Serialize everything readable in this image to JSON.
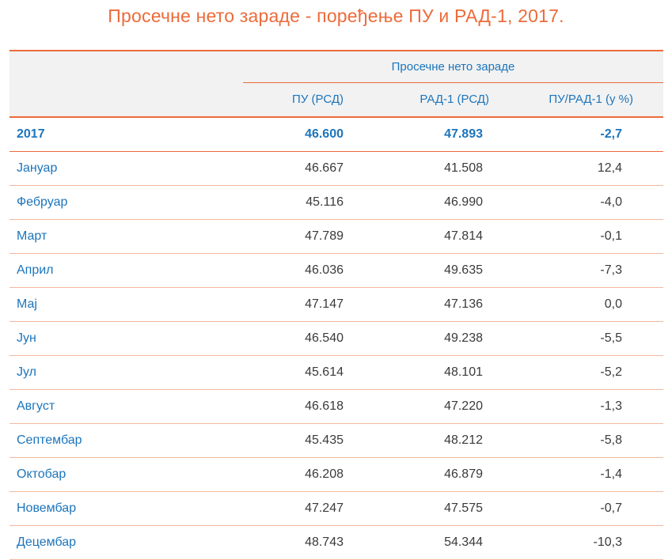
{
  "title": "Просечне нето зараде - поређење ПУ и РАД-1, 2017.",
  "table": {
    "group_header": "Просечне нето зараде",
    "columns": [
      "ПУ (РСД)",
      "РАД-1 (РСД)",
      "ПУ/РАД-1 (у %)"
    ],
    "total": {
      "label": "2017",
      "pu": "46.600",
      "rad1": "47.893",
      "diff": "-2,7"
    },
    "rows": [
      {
        "label": "Јануар",
        "pu": "46.667",
        "rad1": "41.508",
        "diff": "12,4"
      },
      {
        "label": "Фебруар",
        "pu": "45.116",
        "rad1": "46.990",
        "diff": "-4,0"
      },
      {
        "label": "Март",
        "pu": "47.789",
        "rad1": "47.814",
        "diff": "-0,1"
      },
      {
        "label": "Април",
        "pu": "46.036",
        "rad1": "49.635",
        "diff": "-7,3"
      },
      {
        "label": "Мај",
        "pu": "47.147",
        "rad1": "47.136",
        "diff": "0,0"
      },
      {
        "label": "Јун",
        "pu": "46.540",
        "rad1": "49.238",
        "diff": "-5,5"
      },
      {
        "label": "Јул",
        "pu": "45.614",
        "rad1": "48.101",
        "diff": "-5,2"
      },
      {
        "label": "Август",
        "pu": "46.618",
        "rad1": "47.220",
        "diff": "-1,3"
      },
      {
        "label": "Септембар",
        "pu": "45.435",
        "rad1": "48.212",
        "diff": "-5,8"
      },
      {
        "label": "Октобар",
        "pu": "46.208",
        "rad1": "46.879",
        "diff": "-1,4"
      },
      {
        "label": "Новембар",
        "pu": "47.247",
        "rad1": "47.575",
        "diff": "-0,7"
      },
      {
        "label": "Децембар",
        "pu": "48.743",
        "rad1": "54.344",
        "diff": "-10,3"
      }
    ]
  },
  "colors": {
    "title": "#ec6b3a",
    "accent_text": "#1c75bc",
    "rule": "#ec6b3a",
    "header_bg": "#f2f2f2"
  }
}
